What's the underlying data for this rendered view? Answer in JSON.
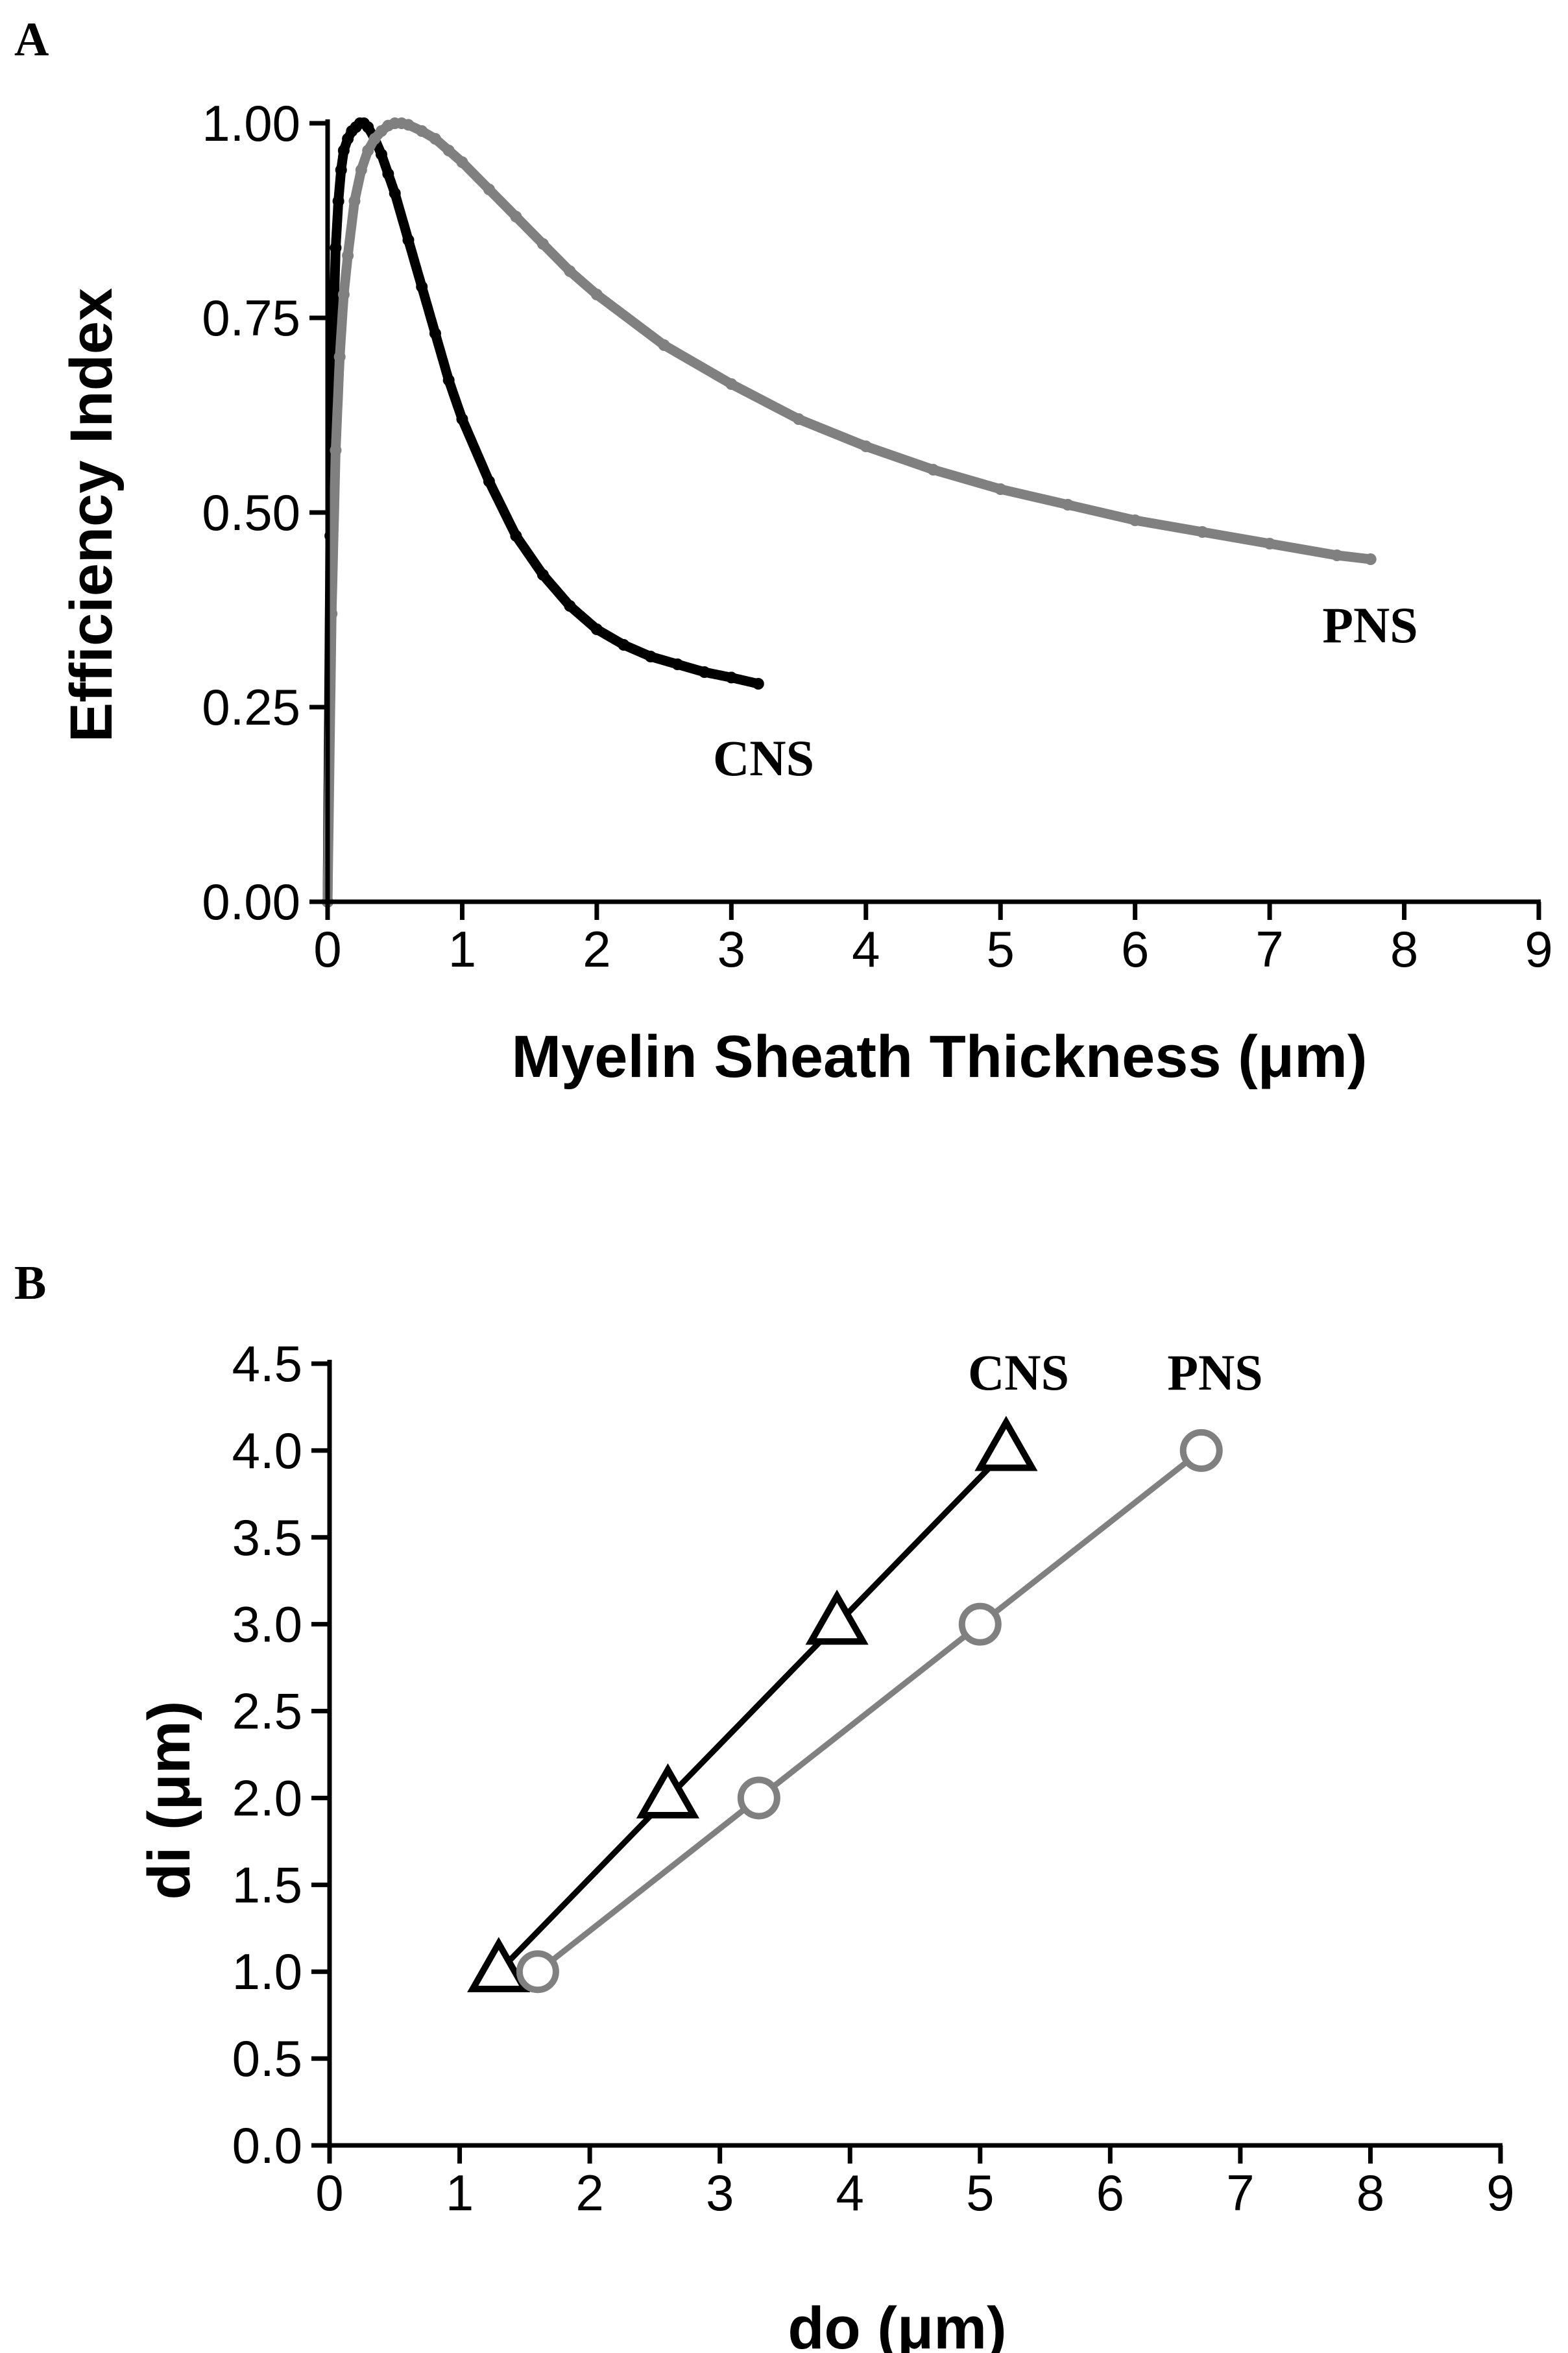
{
  "chart_data": [
    {
      "panel": "A",
      "type": "line",
      "xlabel": "Myelin Sheath Thickness (μm)",
      "ylabel": "Efficiency Index",
      "xlim": [
        0,
        9
      ],
      "ylim": [
        0,
        1
      ],
      "x_ticks": [
        "0",
        "1",
        "2",
        "3",
        "4",
        "5",
        "6",
        "7",
        "8",
        "9"
      ],
      "y_ticks": [
        "0.00",
        "0.25",
        "0.50",
        "0.75",
        "1.00"
      ],
      "grid": false,
      "series": [
        {
          "name": "CNS",
          "color": "#000000",
          "x": [
            0,
            0.02,
            0.04,
            0.06,
            0.08,
            0.1,
            0.12,
            0.15,
            0.18,
            0.21,
            0.24,
            0.27,
            0.3,
            0.35,
            0.4,
            0.45,
            0.5,
            0.6,
            0.7,
            0.8,
            0.9,
            1.0,
            1.2,
            1.4,
            1.6,
            1.8,
            2.0,
            2.2,
            2.4,
            2.6,
            2.8,
            3.0,
            3.2
          ],
          "y": [
            0.0,
            0.47,
            0.72,
            0.84,
            0.9,
            0.94,
            0.965,
            0.98,
            0.99,
            0.995,
            1.0,
            1.0,
            0.995,
            0.98,
            0.96,
            0.935,
            0.91,
            0.85,
            0.79,
            0.73,
            0.67,
            0.62,
            0.54,
            0.47,
            0.42,
            0.38,
            0.35,
            0.33,
            0.315,
            0.305,
            0.295,
            0.288,
            0.28
          ]
        },
        {
          "name": "PNS",
          "color": "#808080",
          "x": [
            0,
            0.03,
            0.06,
            0.09,
            0.12,
            0.15,
            0.2,
            0.25,
            0.3,
            0.35,
            0.4,
            0.45,
            0.5,
            0.55,
            0.6,
            0.7,
            0.8,
            0.9,
            1.0,
            1.2,
            1.4,
            1.6,
            1.8,
            2.0,
            2.5,
            3.0,
            3.5,
            4.0,
            4.5,
            5.0,
            5.5,
            6.0,
            6.5,
            7.0,
            7.5,
            7.75
          ],
          "y": [
            0.0,
            0.37,
            0.58,
            0.7,
            0.78,
            0.83,
            0.9,
            0.94,
            0.965,
            0.98,
            0.99,
            0.997,
            1.0,
            1.0,
            0.998,
            0.99,
            0.98,
            0.965,
            0.95,
            0.915,
            0.88,
            0.845,
            0.81,
            0.78,
            0.715,
            0.665,
            0.62,
            0.585,
            0.555,
            0.53,
            0.51,
            0.49,
            0.475,
            0.46,
            0.445,
            0.44
          ]
        }
      ]
    },
    {
      "panel": "B",
      "type": "line",
      "xlabel": "do (μm)",
      "ylabel": "di (μm)",
      "xlim": [
        0,
        9
      ],
      "ylim": [
        0,
        4.5
      ],
      "x_ticks": [
        "0",
        "1",
        "2",
        "3",
        "4",
        "5",
        "6",
        "7",
        "8",
        "9"
      ],
      "y_ticks": [
        "0.0",
        "0.5",
        "1.0",
        "1.5",
        "2.0",
        "2.5",
        "3.0",
        "3.5",
        "4.0",
        "4.5"
      ],
      "grid": false,
      "series": [
        {
          "name": "CNS",
          "color": "#000000",
          "marker": "triangle",
          "x": [
            1.3,
            2.6,
            3.9,
            5.2
          ],
          "y": [
            1.0,
            2.0,
            3.0,
            4.0
          ]
        },
        {
          "name": "PNS",
          "color": "#808080",
          "marker": "circle",
          "x": [
            1.6,
            3.3,
            5.0,
            6.7
          ],
          "y": [
            1.0,
            2.0,
            3.0,
            4.0
          ]
        }
      ]
    }
  ]
}
